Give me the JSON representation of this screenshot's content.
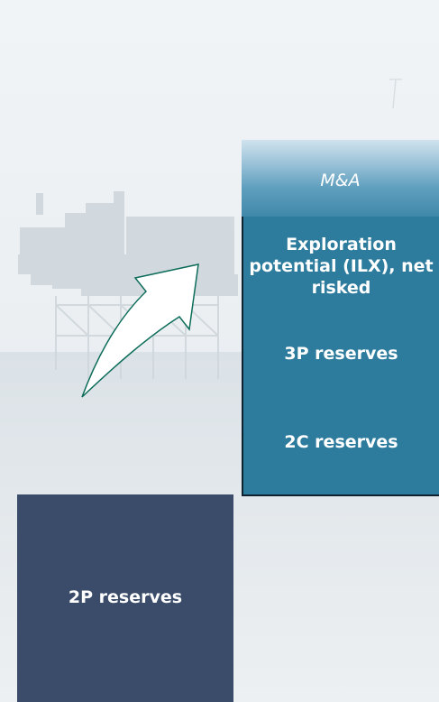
{
  "diagram": {
    "header": {
      "label": "M&A"
    },
    "stack": {
      "exploration_label": "Exploration potential (ILX), net risked",
      "reserves_3p_label": "3P reserves",
      "reserves_2c_label": "2C reserves"
    },
    "base": {
      "reserves_2p_label": "2P reserves"
    },
    "colors": {
      "stack_fill": "#2e7c9d",
      "base_fill": "#3a4c69",
      "arrow_fill": "#ffffff",
      "arrow_stroke": "#0d6d5a"
    },
    "icons": {
      "background": "offshore-platform-icon",
      "arrow": "curved-arrow-icon"
    }
  }
}
